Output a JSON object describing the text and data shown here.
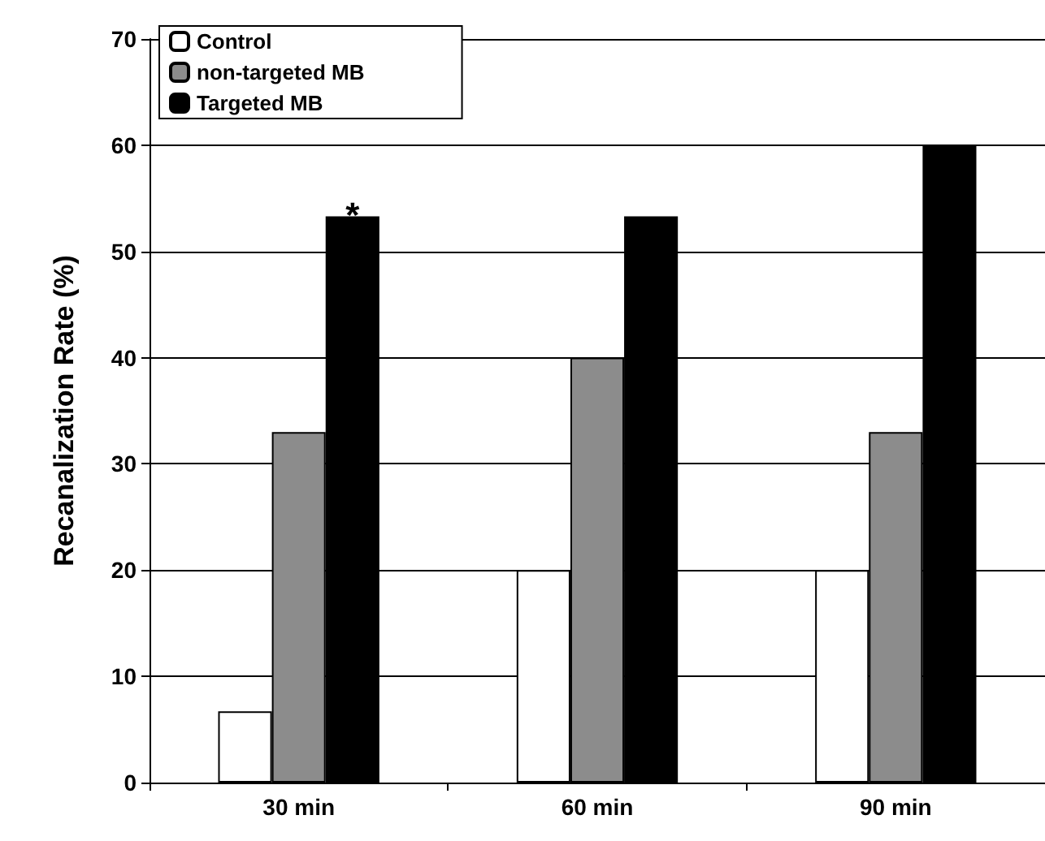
{
  "chart_data": {
    "type": "bar",
    "ylabel": "Recanalization Rate (%)",
    "categories": [
      "30 min",
      "60 min",
      "90 min"
    ],
    "series": [
      {
        "name": "Control",
        "color": "#ffffff",
        "values": [
          6.7,
          20,
          20
        ]
      },
      {
        "name": "non-targeted MB",
        "color": "#8c8c8c",
        "values": [
          33,
          40,
          33
        ]
      },
      {
        "name": "Targeted MB",
        "color": "#000000",
        "values": [
          53.3,
          53.3,
          60
        ]
      }
    ],
    "ylim": [
      0,
      70
    ],
    "yticks": [
      0,
      10,
      20,
      30,
      40,
      50,
      60,
      70
    ],
    "grid": "y",
    "legend": "top left",
    "annotations": [
      "*"
    ]
  }
}
